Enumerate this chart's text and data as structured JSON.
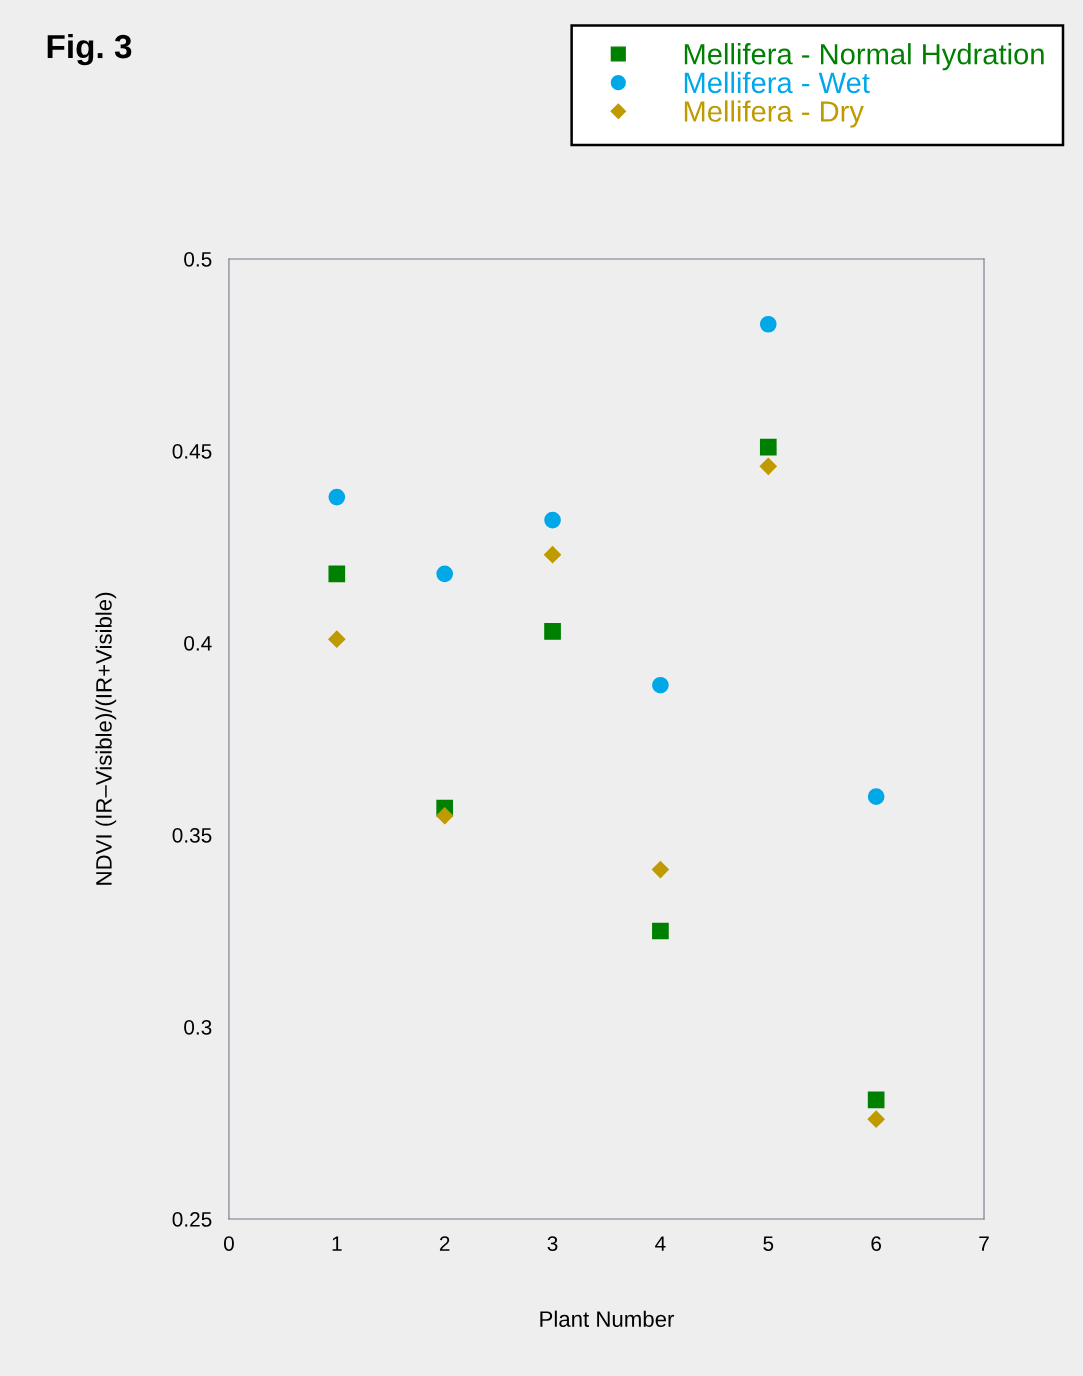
{
  "chart_data": {
    "type": "scatter",
    "title": "Fig. 3",
    "xlabel": "Plant Number",
    "ylabel": "NDVI (IR–Visible)/(IR+Visible)",
    "x": [
      1,
      2,
      3,
      4,
      5,
      6
    ],
    "series": [
      {
        "name": "Mellifera - Normal Hydration",
        "color": "#008000",
        "marker": "square",
        "values": [
          0.418,
          0.357,
          0.403,
          0.325,
          0.451,
          0.281
        ]
      },
      {
        "name": "Mellifera - Wet",
        "color": "#00a8e8",
        "marker": "circle",
        "values": [
          0.438,
          0.418,
          0.432,
          0.389,
          0.483,
          0.36
        ]
      },
      {
        "name": "Mellifera - Dry",
        "color": "#bf9a00",
        "marker": "diamond",
        "values": [
          0.401,
          0.355,
          0.423,
          0.341,
          0.446,
          0.276
        ]
      }
    ],
    "xlim": [
      0,
      7
    ],
    "xticks": [
      0,
      1,
      2,
      3,
      4,
      5,
      6,
      7
    ],
    "ylim": [
      0.25,
      0.5
    ],
    "yticks": [
      0.25,
      0.3,
      0.35,
      0.4,
      0.45,
      0.5
    ],
    "grid": false,
    "legend": "top right"
  }
}
